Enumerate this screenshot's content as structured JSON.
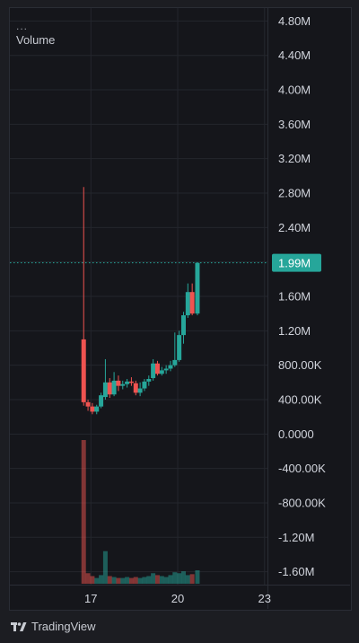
{
  "legend": {
    "dots": "...",
    "title": "Volume"
  },
  "brand": {
    "name": "TradingView"
  },
  "chart_data": {
    "type": "candlestick",
    "title": "",
    "xlabel": "",
    "ylabel": "",
    "y_ticks": [
      "4.80M",
      "4.40M",
      "4.00M",
      "3.60M",
      "3.20M",
      "2.80M",
      "2.40M",
      "2.00M",
      "1.60M",
      "1.20M",
      "800.00K",
      "400.00K",
      "0.0000",
      "-400.00K",
      "-800.00K",
      "-1.20M",
      "-1.60M"
    ],
    "y_tick_values": [
      4800000,
      4400000,
      4000000,
      3600000,
      3200000,
      2800000,
      2400000,
      2000000,
      1600000,
      1200000,
      800000,
      400000,
      0,
      -400000,
      -800000,
      -1200000,
      -1600000
    ],
    "ylim": [
      -1750000,
      4950000
    ],
    "x_ticks": [
      "17",
      "20",
      "23"
    ],
    "x_tick_positions": [
      17,
      20,
      23
    ],
    "x_range": [
      14.2,
      23.1
    ],
    "last_price": {
      "label": "1.99M",
      "value": 1990000,
      "color": "#26a69a"
    },
    "colors": {
      "up": "#26a69a",
      "down": "#ef5350",
      "grid": "#24262d",
      "axis_text": "#d1d4dc"
    },
    "grid": true,
    "candles": [
      {
        "t": 16.75,
        "o": 1100000,
        "h": 2870000,
        "l": 330000,
        "c": 370000
      },
      {
        "t": 16.9,
        "o": 370000,
        "h": 400000,
        "l": 270000,
        "c": 320000
      },
      {
        "t": 17.05,
        "o": 320000,
        "h": 360000,
        "l": 230000,
        "c": 260000
      },
      {
        "t": 17.2,
        "o": 260000,
        "h": 340000,
        "l": 230000,
        "c": 320000
      },
      {
        "t": 17.35,
        "o": 320000,
        "h": 480000,
        "l": 300000,
        "c": 450000
      },
      {
        "t": 17.5,
        "o": 430000,
        "h": 870000,
        "l": 400000,
        "c": 600000
      },
      {
        "t": 17.65,
        "o": 600000,
        "h": 650000,
        "l": 420000,
        "c": 460000
      },
      {
        "t": 17.8,
        "o": 460000,
        "h": 720000,
        "l": 440000,
        "c": 620000
      },
      {
        "t": 17.95,
        "o": 620000,
        "h": 680000,
        "l": 500000,
        "c": 560000
      },
      {
        "t": 18.1,
        "o": 560000,
        "h": 620000,
        "l": 520000,
        "c": 580000
      },
      {
        "t": 18.25,
        "o": 580000,
        "h": 640000,
        "l": 540000,
        "c": 610000
      },
      {
        "t": 18.4,
        "o": 610000,
        "h": 660000,
        "l": 560000,
        "c": 600000
      },
      {
        "t": 18.55,
        "o": 590000,
        "h": 620000,
        "l": 450000,
        "c": 480000
      },
      {
        "t": 18.7,
        "o": 480000,
        "h": 600000,
        "l": 440000,
        "c": 530000
      },
      {
        "t": 18.85,
        "o": 530000,
        "h": 640000,
        "l": 500000,
        "c": 610000
      },
      {
        "t": 19.0,
        "o": 610000,
        "h": 680000,
        "l": 560000,
        "c": 640000
      },
      {
        "t": 19.15,
        "o": 650000,
        "h": 870000,
        "l": 620000,
        "c": 820000
      },
      {
        "t": 19.3,
        "o": 820000,
        "h": 850000,
        "l": 680000,
        "c": 700000
      },
      {
        "t": 19.45,
        "o": 700000,
        "h": 780000,
        "l": 680000,
        "c": 740000
      },
      {
        "t": 19.6,
        "o": 740000,
        "h": 800000,
        "l": 700000,
        "c": 760000
      },
      {
        "t": 19.75,
        "o": 760000,
        "h": 850000,
        "l": 730000,
        "c": 800000
      },
      {
        "t": 19.9,
        "o": 800000,
        "h": 1180000,
        "l": 780000,
        "c": 860000
      },
      {
        "t": 20.05,
        "o": 860000,
        "h": 1200000,
        "l": 840000,
        "c": 1150000
      },
      {
        "t": 20.2,
        "o": 1150000,
        "h": 1420000,
        "l": 1050000,
        "c": 1380000
      },
      {
        "t": 20.35,
        "o": 1380000,
        "h": 1750000,
        "l": 1350000,
        "c": 1650000
      },
      {
        "t": 20.5,
        "o": 1650000,
        "h": 1750000,
        "l": 1380000,
        "c": 1400000
      },
      {
        "t": 20.68,
        "o": 1400000,
        "h": 1990000,
        "l": 1380000,
        "c": 1990000
      }
    ],
    "volume": [
      1500000,
      110000,
      80000,
      60000,
      90000,
      340000,
      80000,
      70000,
      60000,
      60000,
      70000,
      60000,
      70000,
      60000,
      70000,
      80000,
      110000,
      90000,
      80000,
      70000,
      90000,
      120000,
      110000,
      130000,
      90000,
      100000,
      140000
    ]
  }
}
